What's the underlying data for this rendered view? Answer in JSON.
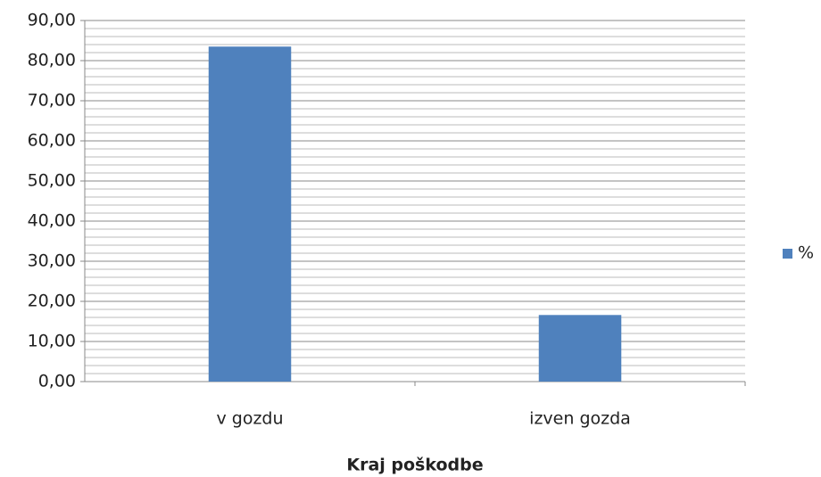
{
  "chart_data": {
    "type": "bar",
    "x_label": "Kraj poškodbe",
    "categories": [
      "v gozdu",
      "izven gozda"
    ],
    "series": [
      {
        "name": "%",
        "color": "#4f81bd",
        "values": [
          83.5,
          16.6
        ]
      }
    ],
    "ylim": [
      0,
      90
    ],
    "yticks": [
      {
        "value": 0,
        "label": "0,00"
      },
      {
        "value": 10,
        "label": "10,00"
      },
      {
        "value": 20,
        "label": "20,00"
      },
      {
        "value": 30,
        "label": "30,00"
      },
      {
        "value": 40,
        "label": "40,00"
      },
      {
        "value": 50,
        "label": "50,00"
      },
      {
        "value": 60,
        "label": "60,00"
      },
      {
        "value": 70,
        "label": "70,00"
      },
      {
        "value": 80,
        "label": "80,00"
      },
      {
        "value": 90,
        "label": "90,00"
      }
    ],
    "grid": true,
    "minor_grid_step": 2,
    "legend": "right"
  }
}
